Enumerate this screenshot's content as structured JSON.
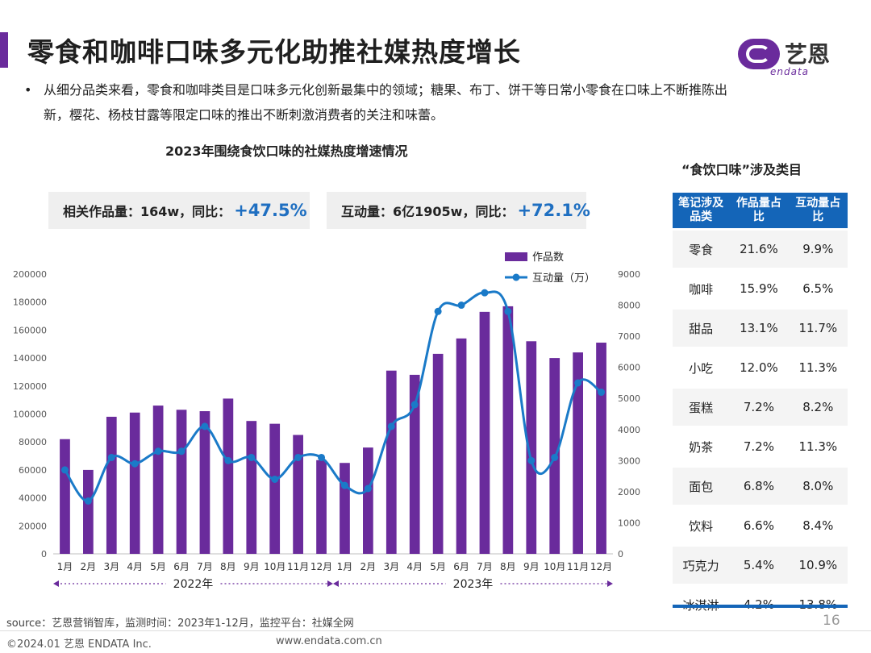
{
  "header": {
    "title": "零食和咖啡口味多元化助推社媒热度增长",
    "logo_cn": "艺恩",
    "logo_en": "endata"
  },
  "bullet": {
    "text": "从细分品类来看，零食和咖啡类目是口味多元化创新最集中的领域；糖果、布丁、饼干等日常小零食在口味上不断推陈出新，樱花、杨枝甘露等限定口味的推出不断刺激消费者的关注和味蕾。"
  },
  "stats": {
    "works_label": "相关作品量：164w，同比：",
    "works_value": "+47.5%",
    "interact_label": "互动量：6亿1905w，同比：",
    "interact_value": "+72.1%"
  },
  "chart_data": {
    "type": "bar+line",
    "title": "2023年围绕食饮口味的社媒热度增速情况",
    "categories": [
      "1月",
      "2月",
      "3月",
      "4月",
      "5月",
      "6月",
      "7月",
      "8月",
      "9月",
      "10月",
      "11月",
      "12月",
      "1月",
      "2月",
      "3月",
      "4月",
      "5月",
      "6月",
      "7月",
      "8月",
      "9月",
      "10月",
      "11月",
      "12月"
    ],
    "year_groups": [
      {
        "label": "2022年",
        "from": 0,
        "to": 11
      },
      {
        "label": "2023年",
        "from": 12,
        "to": 23
      }
    ],
    "series": [
      {
        "name": "作品数",
        "type": "bar",
        "axis": "left",
        "color": "#6a2b9c",
        "values": [
          82000,
          60000,
          98000,
          101000,
          106000,
          103000,
          102000,
          111000,
          95000,
          93000,
          85000,
          67000,
          65000,
          76000,
          131000,
          128000,
          143000,
          154000,
          173000,
          177000,
          152000,
          140000,
          144000,
          151000
        ]
      },
      {
        "name": "互动量（万）",
        "type": "line",
        "axis": "right",
        "color": "#1a7ac8",
        "values": [
          2700,
          1700,
          3100,
          2900,
          3300,
          3300,
          4100,
          3000,
          3100,
          2400,
          3100,
          3100,
          2200,
          2100,
          4100,
          4800,
          7800,
          8000,
          8400,
          7800,
          3000,
          3100,
          5500,
          5200
        ]
      }
    ],
    "y_left": {
      "min": 0,
      "max": 200000,
      "ticks": [
        0,
        20000,
        40000,
        60000,
        80000,
        100000,
        120000,
        140000,
        160000,
        180000,
        200000
      ]
    },
    "y_right": {
      "min": 0,
      "max": 9000,
      "ticks": [
        0,
        1000,
        2000,
        3000,
        4000,
        5000,
        6000,
        7000,
        8000,
        9000
      ]
    },
    "legend_position": "top-right"
  },
  "category_table": {
    "title": "“食饮口味”涉及类目",
    "headers": [
      "笔记涉及品类",
      "作品量占比",
      "互动量占比"
    ],
    "rows": [
      [
        "零食",
        "21.6%",
        "9.9%"
      ],
      [
        "咖啡",
        "15.9%",
        "6.5%"
      ],
      [
        "甜品",
        "13.1%",
        "11.7%"
      ],
      [
        "小吃",
        "12.0%",
        "11.3%"
      ],
      [
        "蛋糕",
        "7.2%",
        "8.2%"
      ],
      [
        "奶茶",
        "7.2%",
        "11.3%"
      ],
      [
        "面包",
        "6.8%",
        "8.0%"
      ],
      [
        "饮料",
        "6.6%",
        "8.4%"
      ],
      [
        "巧克力",
        "5.4%",
        "10.9%"
      ],
      [
        "冰淇淋",
        "4.2%",
        "13.8%"
      ]
    ]
  },
  "footer": {
    "source": "source：艺恩营销智库，监测时间：2023年1-12月，监控平台：社媒全网",
    "page": "16",
    "copyright": "©2024.01 艺恩 ENDATA Inc.",
    "website": "www.endata.com.cn"
  }
}
